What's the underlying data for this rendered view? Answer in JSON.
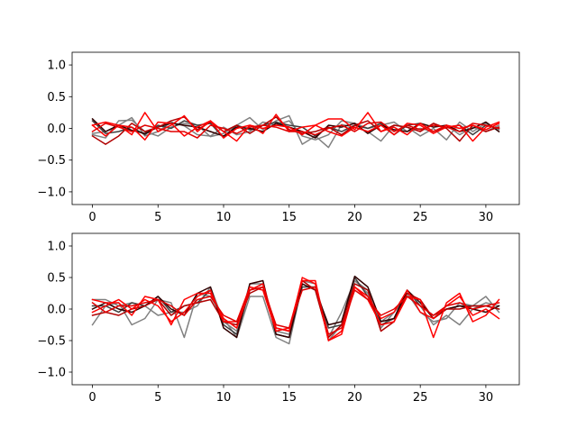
{
  "chart_data": [
    {
      "type": "line",
      "title": "",
      "xlabel": "",
      "ylabel": "",
      "xlim": [
        -1.55,
        32.55
      ],
      "ylim": [
        -1.2,
        1.2
      ],
      "xticks": [
        0,
        5,
        10,
        15,
        20,
        25,
        30
      ],
      "yticks": [
        -1.0,
        -0.5,
        0.0,
        0.5,
        1.0
      ],
      "ytick_labels": [
        "−1.0",
        "−0.5",
        "0.0",
        "0.5",
        "1.0"
      ],
      "grid": false,
      "x": [
        0,
        1,
        2,
        3,
        4,
        5,
        6,
        7,
        8,
        9,
        10,
        11,
        12,
        13,
        14,
        15,
        16,
        17,
        18,
        19,
        20,
        21,
        22,
        23,
        24,
        25,
        26,
        27,
        28,
        29,
        30,
        31
      ],
      "series": [
        {
          "color": "#808080",
          "values": [
            -0.1,
            -0.15,
            0.12,
            0.13,
            -0.05,
            -0.12,
            0.02,
            0.08,
            0.05,
            -0.13,
            -0.08,
            0.05,
            0.17,
            -0.02,
            0.12,
            0.2,
            -0.25,
            -0.12,
            -0.3,
            0.06,
            0.02,
            -0.05,
            -0.2,
            0.05,
            0.02,
            -0.12,
            0.0,
            -0.18,
            0.1,
            -0.05,
            0.08,
            -0.02
          ]
        },
        {
          "color": "#808080",
          "values": [
            -0.08,
            -0.05,
            0.05,
            0.17,
            -0.12,
            -0.05,
            0.1,
            0.04,
            -0.1,
            -0.12,
            0.02,
            -0.1,
            -0.05,
            0.1,
            0.05,
            0.12,
            -0.12,
            -0.18,
            -0.1,
            0.12,
            0.08,
            0.0,
            0.05,
            0.1,
            -0.05,
            0.0,
            -0.05,
            0.05,
            -0.1,
            0.02,
            -0.05,
            0.05
          ]
        },
        {
          "color": "#404040",
          "values": [
            0.12,
            -0.08,
            -0.05,
            0.02,
            -0.1,
            0.05,
            0.0,
            0.12,
            0.05,
            0.08,
            -0.15,
            0.05,
            -0.02,
            0.05,
            0.1,
            0.05,
            0.02,
            -0.12,
            0.02,
            -0.05,
            0.05,
            0.0,
            0.08,
            -0.1,
            0.05,
            0.08,
            -0.05,
            0.02,
            0.05,
            -0.1,
            0.05,
            0.0
          ]
        },
        {
          "color": "#300000",
          "values": [
            0.15,
            -0.05,
            0.05,
            -0.03,
            -0.08,
            0.02,
            0.08,
            0.05,
            0.02,
            -0.05,
            -0.12,
            0.02,
            0.0,
            -0.05,
            0.08,
            0.02,
            -0.05,
            -0.15,
            0.05,
            0.02,
            0.08,
            -0.08,
            0.05,
            -0.02,
            -0.05,
            0.08,
            0.02,
            0.05,
            -0.05,
            0.0,
            0.1,
            -0.05
          ]
        },
        {
          "color": "#b00000",
          "values": [
            -0.12,
            -0.25,
            -0.12,
            0.08,
            -0.05,
            0.02,
            0.12,
            0.18,
            -0.02,
            0.1,
            -0.05,
            0.05,
            -0.08,
            0.05,
            0.18,
            -0.02,
            -0.08,
            -0.05,
            0.02,
            -0.1,
            0.05,
            0.12,
            -0.05,
            0.05,
            0.02,
            -0.05,
            0.08,
            0.0,
            -0.2,
            0.05,
            -0.05,
            0.02
          ]
        },
        {
          "color": "#ff0000",
          "values": [
            0.05,
            0.1,
            0.05,
            -0.1,
            0.25,
            -0.05,
            0.05,
            0.2,
            -0.05,
            0.12,
            -0.15,
            0.0,
            0.05,
            -0.08,
            0.22,
            -0.05,
            0.02,
            0.05,
            0.15,
            0.15,
            -0.02,
            0.25,
            -0.05,
            0.02,
            -0.1,
            0.08,
            -0.05,
            0.05,
            0.0,
            0.05,
            -0.02,
            0.08
          ]
        },
        {
          "color": "#ff0000",
          "values": [
            0.05,
            -0.12,
            0.05,
            0.02,
            -0.18,
            0.1,
            0.08,
            -0.12,
            0.02,
            0.12,
            -0.05,
            -0.2,
            0.05,
            0.0,
            0.05,
            0.02,
            -0.1,
            0.05,
            -0.05,
            -0.12,
            0.02,
            -0.05,
            0.05,
            -0.1,
            0.08,
            0.05,
            -0.08,
            0.02,
            0.05,
            -0.2,
            0.02,
            0.1
          ]
        },
        {
          "color": "#e00000",
          "values": [
            -0.05,
            0.08,
            0.02,
            -0.05,
            0.05,
            0.0,
            -0.05,
            -0.05,
            -0.15,
            0.05,
            0.0,
            -0.08,
            0.02,
            0.05,
            0.02,
            -0.05,
            -0.05,
            -0.1,
            0.0,
            0.05,
            -0.05,
            0.08,
            0.1,
            -0.05,
            0.05,
            -0.02,
            0.05,
            0.02,
            -0.05,
            0.08,
            0.05,
            0.0
          ]
        }
      ]
    },
    {
      "type": "line",
      "title": "",
      "xlabel": "",
      "ylabel": "",
      "xlim": [
        -1.55,
        32.55
      ],
      "ylim": [
        -1.2,
        1.2
      ],
      "xticks": [
        0,
        5,
        10,
        15,
        20,
        25,
        30
      ],
      "yticks": [
        -1.0,
        -0.5,
        0.0,
        0.5,
        1.0
      ],
      "ytick_labels": [
        "−1.0",
        "−0.5",
        "0.0",
        "0.5",
        "1.0"
      ],
      "grid": false,
      "x": [
        0,
        1,
        2,
        3,
        4,
        5,
        6,
        7,
        8,
        9,
        10,
        11,
        12,
        13,
        14,
        15,
        16,
        17,
        18,
        19,
        20,
        21,
        22,
        23,
        24,
        25,
        26,
        27,
        28,
        29,
        30,
        31
      ],
      "series": [
        {
          "color": "#808080",
          "values": [
            -0.25,
            0.05,
            0.1,
            -0.25,
            -0.15,
            0.15,
            0.1,
            -0.45,
            0.25,
            0.2,
            -0.15,
            -0.45,
            0.2,
            0.2,
            -0.45,
            -0.55,
            0.4,
            0.3,
            -0.45,
            -0.05,
            0.45,
            0.25,
            -0.2,
            -0.05,
            0.2,
            0.05,
            -0.25,
            -0.1,
            -0.25,
            0.0,
            0.1,
            0.05
          ]
        },
        {
          "color": "#808080",
          "values": [
            0.15,
            0.15,
            0.05,
            0.1,
            0.05,
            -0.1,
            -0.05,
            -0.05,
            0.05,
            0.35,
            -0.2,
            -0.35,
            0.4,
            0.4,
            -0.35,
            -0.4,
            0.45,
            0.4,
            -0.5,
            -0.25,
            0.45,
            0.3,
            -0.3,
            -0.05,
            0.25,
            -0.05,
            -0.2,
            -0.15,
            0.1,
            0.05,
            0.2,
            -0.05
          ]
        },
        {
          "color": "#404040",
          "values": [
            0.05,
            0.05,
            -0.05,
            0.1,
            0.05,
            0.2,
            -0.05,
            0.05,
            0.1,
            0.3,
            -0.25,
            -0.4,
            0.3,
            0.4,
            -0.4,
            -0.45,
            0.35,
            0.35,
            -0.3,
            -0.25,
            0.5,
            0.2,
            -0.25,
            -0.15,
            0.3,
            0.05,
            -0.1,
            0.0,
            0.05,
            0.05,
            0.05,
            0.0
          ]
        },
        {
          "color": "#300000",
          "values": [
            0.0,
            0.1,
            0.0,
            -0.05,
            0.05,
            0.2,
            0.0,
            -0.1,
            0.25,
            0.35,
            -0.3,
            -0.45,
            0.4,
            0.45,
            -0.4,
            -0.45,
            0.4,
            0.3,
            -0.25,
            -0.2,
            0.52,
            0.35,
            -0.2,
            -0.15,
            0.3,
            0.1,
            -0.15,
            0.0,
            0.05,
            0.0,
            -0.05,
            0.05
          ]
        },
        {
          "color": "#b00000",
          "values": [
            -0.1,
            -0.05,
            -0.1,
            0.0,
            0.05,
            0.15,
            -0.1,
            0.05,
            0.1,
            0.15,
            -0.2,
            -0.25,
            0.25,
            0.35,
            -0.3,
            -0.35,
            0.45,
            0.3,
            -0.45,
            -0.25,
            0.4,
            0.3,
            -0.35,
            -0.2,
            0.25,
            0.15,
            -0.15,
            0.0,
            0.0,
            0.05,
            0.05,
            0.0
          ]
        },
        {
          "color": "#ff0000",
          "values": [
            0.15,
            0.1,
            0.1,
            -0.1,
            0.2,
            0.15,
            -0.25,
            0.15,
            0.25,
            0.25,
            -0.15,
            -0.3,
            0.3,
            0.4,
            -0.3,
            -0.35,
            0.5,
            0.4,
            -0.5,
            -0.4,
            0.35,
            0.15,
            -0.25,
            -0.2,
            0.2,
            0.15,
            -0.45,
            0.1,
            0.25,
            -0.2,
            -0.1,
            0.15
          ]
        },
        {
          "color": "#ff0000",
          "values": [
            -0.05,
            0.05,
            0.15,
            0.0,
            0.15,
            0.05,
            -0.2,
            -0.05,
            0.2,
            0.3,
            -0.2,
            -0.2,
            0.35,
            0.3,
            -0.35,
            -0.3,
            0.45,
            0.45,
            -0.5,
            -0.35,
            0.35,
            0.2,
            -0.15,
            -0.05,
            0.3,
            -0.05,
            -0.15,
            0.05,
            0.2,
            -0.1,
            0.0,
            -0.15
          ]
        },
        {
          "color": "#e00000",
          "values": [
            0.1,
            -0.05,
            0.05,
            0.05,
            0.1,
            0.15,
            0.05,
            -0.1,
            0.15,
            0.2,
            -0.1,
            -0.2,
            0.3,
            0.35,
            -0.25,
            -0.3,
            0.3,
            0.35,
            -0.4,
            -0.3,
            0.3,
            0.15,
            -0.1,
            0.0,
            0.2,
            0.05,
            -0.1,
            0.05,
            0.1,
            0.0,
            0.05,
            0.1
          ]
        }
      ]
    }
  ]
}
